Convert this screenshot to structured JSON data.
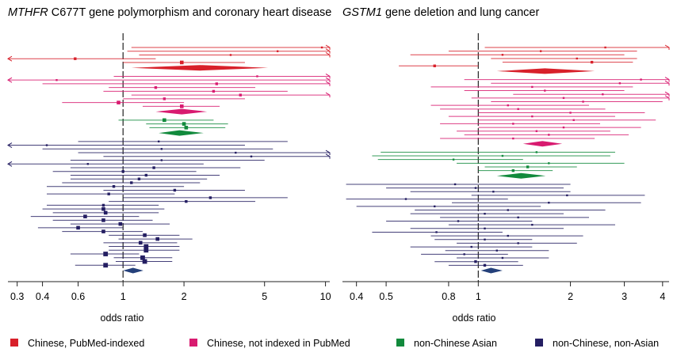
{
  "colors": {
    "chinese_pubmed": "#d8202a",
    "chinese_not_pubmed": "#d81b70",
    "non_chinese_asian": "#118a3c",
    "non_chinese_non_asian": "#241e62",
    "diamond_chinese_pubmed": "#d8202a",
    "diamond_chinese_not_pubmed": "#d81b70",
    "diamond_non_chinese_asian": "#118a3c",
    "diamond_non_chinese_non_asian": "#24407a",
    "axis": "#222222"
  },
  "legend": [
    {
      "key": "chinese_pubmed",
      "label": "Chinese, PubMed-indexed"
    },
    {
      "key": "chinese_not_pubmed",
      "label": "Chinese, not indexed in PubMed"
    },
    {
      "key": "non_chinese_asian",
      "label": "non-Chinese Asian"
    },
    {
      "key": "non_chinese_non_asian",
      "label": "non-Chinese, non-Asian"
    }
  ],
  "chart_data": [
    {
      "type": "forest",
      "title_gene": "MTHFR",
      "title_rest": " C677T gene polymorphism and coronary heart disease",
      "xlabel": "odds ratio",
      "xscale": "log",
      "xlim": [
        0.27,
        10.5
      ],
      "xticks": [
        0.3,
        0.4,
        0.6,
        1,
        2,
        5,
        10
      ],
      "xtick_labels": [
        "0.3",
        "0.4",
        "0.6",
        "1",
        "2",
        "5",
        "10"
      ],
      "reference_line": 1,
      "groups": [
        {
          "key": "chinese_pubmed",
          "studies": [
            {
              "or": 9.6,
              "lo": 1.1,
              "hi": 10.5,
              "w": 1
            },
            {
              "or": 5.8,
              "lo": 1.05,
              "hi": 10.5,
              "w": 1
            },
            {
              "or": 3.4,
              "lo": 1.2,
              "hi": 10.5,
              "w": 1
            },
            {
              "or": 0.58,
              "lo": 0.27,
              "hi": 1.45,
              "w": 2
            },
            {
              "or": 1.95,
              "lo": 1.0,
              "hi": 4.0,
              "w": 3
            }
          ],
          "summary": {
            "or": 2.4,
            "lo": 1.1,
            "hi": 5.2
          }
        },
        {
          "key": "chinese_not_pubmed",
          "studies": [
            {
              "or": 4.6,
              "lo": 0.9,
              "hi": 10.5,
              "w": 1
            },
            {
              "or": 0.47,
              "lo": 0.27,
              "hi": 10.5,
              "w": 1
            },
            {
              "or": 2.9,
              "lo": 0.4,
              "hi": 10.5,
              "w": 2
            },
            {
              "or": 1.45,
              "lo": 0.85,
              "hi": 4.5,
              "w": 2
            },
            {
              "or": 2.8,
              "lo": 0.8,
              "hi": 6.5,
              "w": 2
            },
            {
              "or": 3.8,
              "lo": 1.1,
              "hi": 10.5,
              "w": 2
            },
            {
              "or": 1.6,
              "lo": 1.0,
              "hi": 4.0,
              "w": 2
            },
            {
              "or": 0.95,
              "lo": 0.5,
              "hi": 2.0,
              "w": 3
            },
            {
              "or": 1.95,
              "lo": 1.25,
              "hi": 3.0,
              "w": 3
            }
          ],
          "summary": {
            "or": 1.95,
            "lo": 1.45,
            "hi": 2.6
          }
        },
        {
          "key": "non_chinese_asian",
          "studies": [
            {
              "or": 1.6,
              "lo": 0.95,
              "hi": 2.8,
              "w": 3
            },
            {
              "or": 2.0,
              "lo": 1.3,
              "hi": 3.3,
              "w": 3
            },
            {
              "or": 2.05,
              "lo": 1.35,
              "hi": 3.2,
              "w": 3
            }
          ],
          "summary": {
            "or": 1.9,
            "lo": 1.5,
            "hi": 2.5
          }
        },
        {
          "key": "non_chinese_non_asian",
          "studies": [
            {
              "or": 1.5,
              "lo": 0.6,
              "hi": 6.5,
              "w": 1
            },
            {
              "or": 0.42,
              "lo": 0.27,
              "hi": 4.0,
              "w": 1
            },
            {
              "or": 1.55,
              "lo": 0.4,
              "hi": 5.5,
              "w": 1
            },
            {
              "or": 3.6,
              "lo": 0.6,
              "hi": 10.5,
              "w": 1
            },
            {
              "or": 4.3,
              "lo": 0.8,
              "hi": 10.5,
              "w": 1
            },
            {
              "or": 1.55,
              "lo": 0.55,
              "hi": 5.0,
              "w": 1
            },
            {
              "or": 0.67,
              "lo": 0.27,
              "hi": 2.5,
              "w": 1
            },
            {
              "or": 1.42,
              "lo": 0.55,
              "hi": 3.8,
              "w": 2
            },
            {
              "or": 1.0,
              "lo": 0.45,
              "hi": 2.3,
              "w": 2
            },
            {
              "or": 1.3,
              "lo": 0.55,
              "hi": 3.0,
              "w": 2
            },
            {
              "or": 1.2,
              "lo": 0.55,
              "hi": 2.6,
              "w": 2
            },
            {
              "or": 1.1,
              "lo": 0.5,
              "hi": 2.4,
              "w": 2
            },
            {
              "or": 0.9,
              "lo": 0.42,
              "hi": 2.0,
              "w": 2
            },
            {
              "or": 1.8,
              "lo": 0.8,
              "hi": 4.0,
              "w": 2
            },
            {
              "or": 0.85,
              "lo": 0.42,
              "hi": 1.8,
              "w": 2
            },
            {
              "or": 2.7,
              "lo": 1.0,
              "hi": 6.5,
              "w": 2
            },
            {
              "or": 2.05,
              "lo": 0.85,
              "hi": 4.5,
              "w": 2
            },
            {
              "or": 0.8,
              "lo": 0.42,
              "hi": 1.5,
              "w": 2
            },
            {
              "or": 0.8,
              "lo": 0.4,
              "hi": 1.6,
              "w": 3
            },
            {
              "or": 0.82,
              "lo": 0.45,
              "hi": 1.5,
              "w": 3
            },
            {
              "or": 0.65,
              "lo": 0.35,
              "hi": 1.2,
              "w": 3
            },
            {
              "or": 0.8,
              "lo": 0.45,
              "hi": 1.4,
              "w": 3
            },
            {
              "or": 0.97,
              "lo": 0.55,
              "hi": 1.7,
              "w": 3
            },
            {
              "or": 0.6,
              "lo": 0.38,
              "hi": 1.0,
              "w": 3
            },
            {
              "or": 0.8,
              "lo": 0.5,
              "hi": 1.25,
              "w": 3
            },
            {
              "or": 1.28,
              "lo": 0.85,
              "hi": 1.9,
              "w": 3
            },
            {
              "or": 1.48,
              "lo": 0.95,
              "hi": 2.2,
              "w": 3
            },
            {
              "or": 1.22,
              "lo": 0.8,
              "hi": 1.85,
              "w": 3
            },
            {
              "or": 1.3,
              "lo": 0.85,
              "hi": 1.9,
              "w": 4
            },
            {
              "or": 1.3,
              "lo": 0.85,
              "hi": 1.9,
              "w": 4
            },
            {
              "or": 0.82,
              "lo": 0.55,
              "hi": 1.2,
              "w": 4
            },
            {
              "or": 1.25,
              "lo": 0.9,
              "hi": 1.75,
              "w": 4
            },
            {
              "or": 1.28,
              "lo": 0.92,
              "hi": 1.75,
              "w": 4
            },
            {
              "or": 0.82,
              "lo": 0.58,
              "hi": 1.15,
              "w": 4
            }
          ],
          "summary": {
            "or": 1.12,
            "lo": 1.0,
            "hi": 1.26
          }
        }
      ]
    },
    {
      "type": "forest",
      "title_gene": "GSTM1",
      "title_rest": " gene deletion and lung cancer",
      "xlabel": "odds ratio",
      "xscale": "log",
      "xlim": [
        0.36,
        4.2
      ],
      "xticks": [
        0.4,
        0.5,
        0.8,
        1,
        2,
        3,
        4
      ],
      "xtick_labels": [
        "0.4",
        "0.5",
        "0.8",
        "1",
        "2",
        "3",
        "4"
      ],
      "reference_line": 1,
      "groups": [
        {
          "key": "chinese_pubmed",
          "studies": [
            {
              "or": 2.6,
              "lo": 1.05,
              "hi": 4.2,
              "w": 1
            },
            {
              "or": 1.6,
              "lo": 0.8,
              "hi": 3.3,
              "w": 1
            },
            {
              "or": 1.2,
              "lo": 0.6,
              "hi": 3.0,
              "w": 1
            },
            {
              "or": 2.1,
              "lo": 1.1,
              "hi": 3.3,
              "w": 1
            },
            {
              "or": 2.35,
              "lo": 1.2,
              "hi": 3.2,
              "w": 2
            },
            {
              "or": 0.72,
              "lo": 0.55,
              "hi": 1.0,
              "w": 2
            }
          ],
          "summary": {
            "or": 1.65,
            "lo": 1.15,
            "hi": 2.4
          }
        },
        {
          "key": "chinese_not_pubmed",
          "studies": [
            {
              "or": 3.4,
              "lo": 0.9,
              "hi": 4.2,
              "w": 1
            },
            {
              "or": 2.9,
              "lo": 1.1,
              "hi": 4.2,
              "w": 1
            },
            {
              "or": 1.5,
              "lo": 0.7,
              "hi": 3.2,
              "w": 1
            },
            {
              "or": 1.65,
              "lo": 0.9,
              "hi": 3.0,
              "w": 1
            },
            {
              "or": 2.55,
              "lo": 1.3,
              "hi": 4.2,
              "w": 1
            },
            {
              "or": 1.9,
              "lo": 0.95,
              "hi": 4.2,
              "w": 1
            },
            {
              "or": 2.2,
              "lo": 1.1,
              "hi": 4.0,
              "w": 1
            },
            {
              "or": 1.25,
              "lo": 0.7,
              "hi": 2.3,
              "w": 1
            },
            {
              "or": 1.35,
              "lo": 0.75,
              "hi": 2.6,
              "w": 1
            },
            {
              "or": 2.0,
              "lo": 1.0,
              "hi": 3.5,
              "w": 1
            },
            {
              "or": 1.5,
              "lo": 0.8,
              "hi": 2.8,
              "w": 1
            },
            {
              "or": 2.05,
              "lo": 1.0,
              "hi": 3.8,
              "w": 1
            },
            {
              "or": 1.3,
              "lo": 0.75,
              "hi": 2.5,
              "w": 1
            },
            {
              "or": 1.9,
              "lo": 1.0,
              "hi": 3.4,
              "w": 1
            },
            {
              "or": 1.55,
              "lo": 0.85,
              "hi": 2.7,
              "w": 1
            },
            {
              "or": 1.7,
              "lo": 0.9,
              "hi": 3.1,
              "w": 1
            },
            {
              "or": 1.3,
              "lo": 0.75,
              "hi": 2.4,
              "w": 1
            }
          ],
          "summary": {
            "or": 1.62,
            "lo": 1.4,
            "hi": 1.88
          }
        },
        {
          "key": "non_chinese_asian",
          "studies": [
            {
              "or": 1.55,
              "lo": 0.48,
              "hi": 2.8,
              "w": 1
            },
            {
              "or": 1.2,
              "lo": 0.45,
              "hi": 2.7,
              "w": 1
            },
            {
              "or": 0.83,
              "lo": 0.47,
              "hi": 1.4,
              "w": 1
            },
            {
              "or": 1.7,
              "lo": 0.85,
              "hi": 3.0,
              "w": 1
            },
            {
              "or": 1.45,
              "lo": 1.05,
              "hi": 2.1,
              "w": 2
            },
            {
              "or": 1.3,
              "lo": 1.0,
              "hi": 1.75,
              "w": 2
            }
          ],
          "summary": {
            "or": 1.38,
            "lo": 1.15,
            "hi": 1.66
          }
        },
        {
          "key": "non_chinese_non_asian",
          "studies": [
            {
              "or": 0.84,
              "lo": 0.37,
              "hi": 2.0,
              "w": 1
            },
            {
              "or": 0.98,
              "lo": 0.5,
              "hi": 1.9,
              "w": 1
            },
            {
              "or": 1.12,
              "lo": 0.6,
              "hi": 2.0,
              "w": 1
            },
            {
              "or": 1.95,
              "lo": 0.95,
              "hi": 3.5,
              "w": 1
            },
            {
              "or": 0.58,
              "lo": 0.37,
              "hi": 1.25,
              "w": 1
            },
            {
              "or": 1.7,
              "lo": 0.82,
              "hi": 3.4,
              "w": 1
            },
            {
              "or": 0.72,
              "lo": 0.4,
              "hi": 1.6,
              "w": 1
            },
            {
              "or": 1.25,
              "lo": 0.62,
              "hi": 2.6,
              "w": 1
            },
            {
              "or": 1.05,
              "lo": 0.6,
              "hi": 1.9,
              "w": 1
            },
            {
              "or": 1.35,
              "lo": 0.75,
              "hi": 2.3,
              "w": 1
            },
            {
              "or": 0.86,
              "lo": 0.5,
              "hi": 1.5,
              "w": 1
            },
            {
              "or": 1.5,
              "lo": 0.8,
              "hi": 2.8,
              "w": 1
            },
            {
              "or": 1.05,
              "lo": 0.6,
              "hi": 1.9,
              "w": 1
            },
            {
              "or": 0.73,
              "lo": 0.45,
              "hi": 1.2,
              "w": 1
            },
            {
              "or": 1.25,
              "lo": 0.7,
              "hi": 2.2,
              "w": 1
            },
            {
              "or": 1.05,
              "lo": 0.72,
              "hi": 1.5,
              "w": 1
            },
            {
              "or": 1.35,
              "lo": 0.85,
              "hi": 2.1,
              "w": 1
            },
            {
              "or": 0.95,
              "lo": 0.6,
              "hi": 1.5,
              "w": 1
            },
            {
              "or": 1.15,
              "lo": 0.78,
              "hi": 1.7,
              "w": 1
            },
            {
              "or": 0.9,
              "lo": 0.65,
              "hi": 1.25,
              "w": 1
            },
            {
              "or": 1.2,
              "lo": 0.85,
              "hi": 1.7,
              "w": 1
            },
            {
              "or": 0.98,
              "lo": 0.72,
              "hi": 1.35,
              "w": 2
            },
            {
              "or": 1.05,
              "lo": 0.8,
              "hi": 1.4,
              "w": 2
            }
          ],
          "summary": {
            "or": 1.1,
            "lo": 1.02,
            "hi": 1.2
          }
        }
      ]
    }
  ]
}
